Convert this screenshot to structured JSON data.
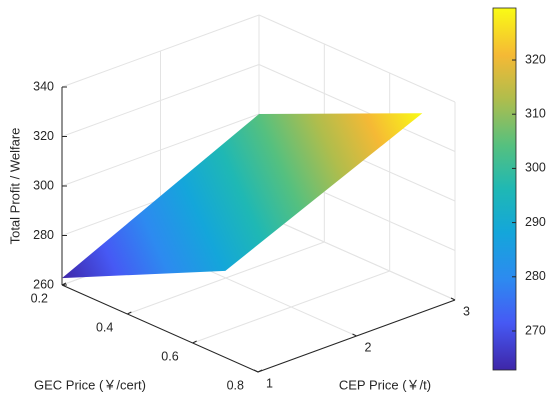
{
  "chart_data": {
    "type": "surface",
    "x_label": "CEP Price (￥/t)",
    "y_label": "GEC Price (￥/cert)",
    "z_label": "Total Profit / Welfare",
    "x": [
      1,
      3
    ],
    "y": [
      0.2,
      0.7
    ],
    "z": [
      [
        262.8,
        300
      ],
      [
        295,
        329.6
      ]
    ],
    "xlim": [
      1,
      3
    ],
    "xticks": [
      1,
      2,
      3
    ],
    "ylim": [
      0.2,
      0.8
    ],
    "yticks": [
      0.2,
      0.4,
      0.6,
      0.8
    ],
    "zlim": [
      260,
      340
    ],
    "zticks": [
      260,
      280,
      300,
      320,
      340
    ],
    "colormap": "parula",
    "colorbar": {
      "clim": [
        262.8,
        329.6
      ],
      "ticks": [
        270,
        280,
        290,
        300,
        310,
        320
      ]
    },
    "grid": true
  }
}
